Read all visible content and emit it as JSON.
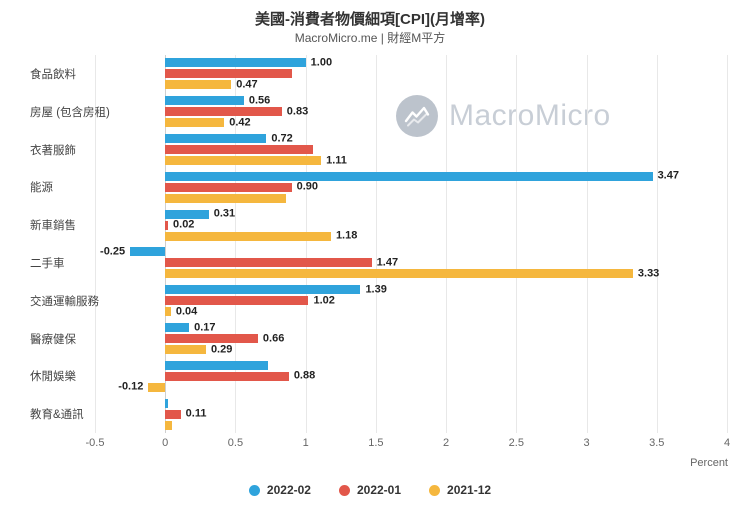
{
  "header": {
    "title": "美國-消費者物價細項[CPI](月增率)",
    "subtitle": "MacroMicro.me | 財經M平方"
  },
  "watermark": {
    "brand": "MacroMicro"
  },
  "chart_data": {
    "type": "bar",
    "orientation": "horizontal",
    "title": "美國-消費者物價細項[CPI](月增率)",
    "xlabel": "Percent",
    "xlim": [
      -0.5,
      4
    ],
    "xticks": [
      -0.5,
      0,
      0.5,
      1,
      1.5,
      2,
      2.5,
      3,
      3.5,
      4
    ],
    "grid": true,
    "legend_position": "bottom",
    "categories": [
      "食品飲料",
      "房屋 (包含房租)",
      "衣著服飾",
      "能源",
      "新車銷售",
      "二手車",
      "交通運輸服務",
      "醫療健保",
      "休閒娛樂",
      "教育&通訊"
    ],
    "series": [
      {
        "name": "2022-02",
        "color": "#2fa3dc",
        "values": [
          1.0,
          0.56,
          0.72,
          3.47,
          0.31,
          -0.25,
          1.39,
          0.17,
          0.73,
          0.02
        ],
        "labels": [
          "1.00",
          "0.56",
          "0.72",
          "3.47",
          "0.31",
          "-0.25",
          "1.39",
          "0.17",
          null,
          null
        ]
      },
      {
        "name": "2022-01",
        "color": "#e2574a",
        "values": [
          0.9,
          0.83,
          1.05,
          0.9,
          0.02,
          1.47,
          1.02,
          0.66,
          0.88,
          0.11
        ],
        "labels": [
          null,
          "0.83",
          null,
          "0.90",
          "0.02",
          "1.47",
          "1.02",
          "0.66",
          "0.88",
          "0.11"
        ]
      },
      {
        "name": "2021-12",
        "color": "#f5b73e",
        "values": [
          0.47,
          0.42,
          1.11,
          0.86,
          1.18,
          3.33,
          0.04,
          0.29,
          -0.12,
          0.05
        ],
        "labels": [
          "0.47",
          "0.42",
          "1.11",
          null,
          "1.18",
          "3.33",
          "0.04",
          "0.29",
          "-0.12",
          null
        ]
      }
    ]
  }
}
